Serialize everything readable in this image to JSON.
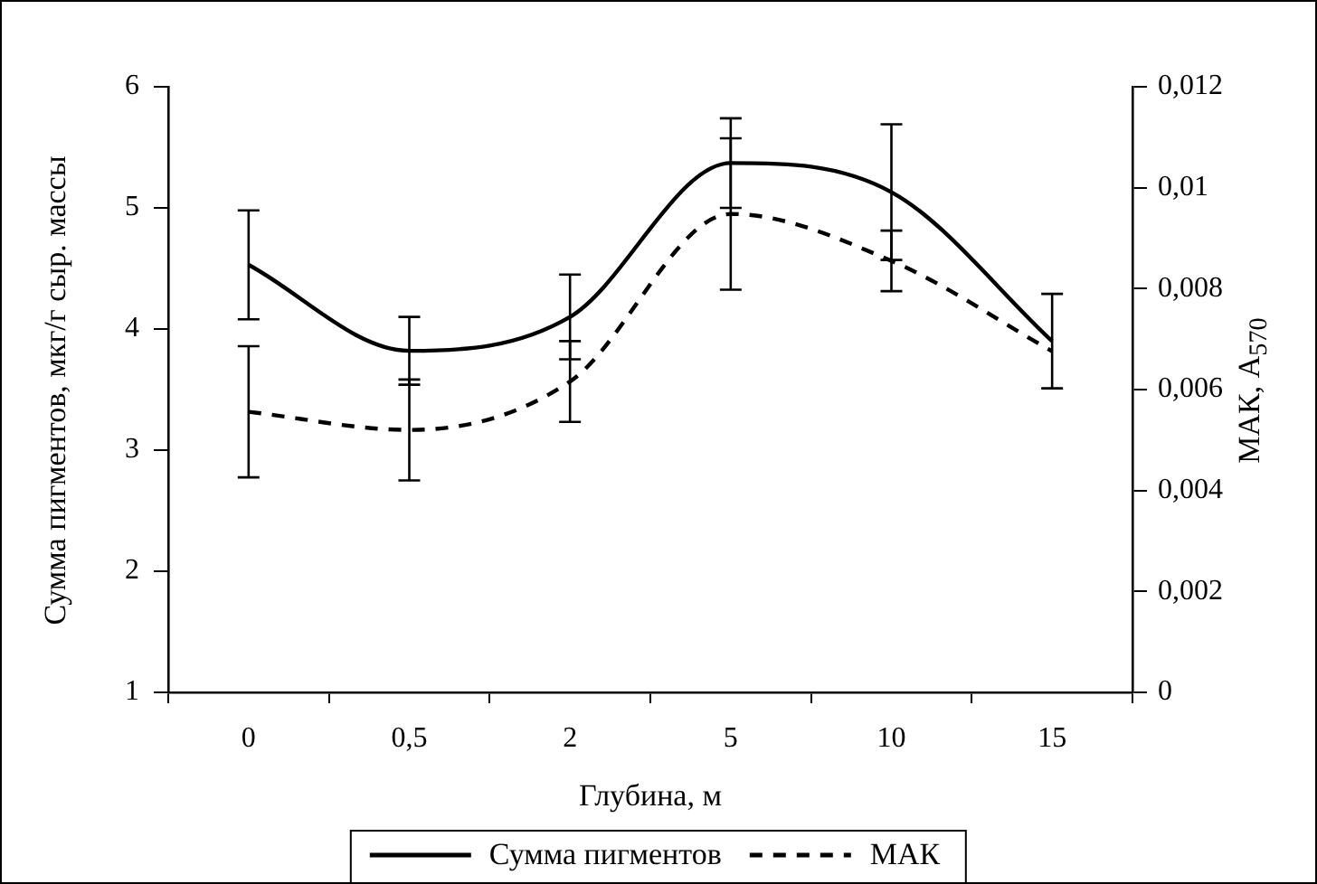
{
  "chart_data": {
    "type": "line",
    "xlabel": "Глубина, м",
    "ylabel": "Сумма пигментов,  мкг/г сыр.  массы",
    "y2label": "МАК,  A$_{570}$",
    "categories": [
      "0",
      "0,5",
      "2",
      "5",
      "10",
      "15"
    ],
    "series": [
      {
        "name": "Сумма пигментов",
        "color": "#000000",
        "line_style": "solid",
        "values": [
          4.53,
          3.82,
          4.1,
          5.37,
          5.13,
          3.9
        ],
        "errors": [
          0.45,
          0.28,
          0.35,
          0.37,
          0.56,
          0.39
        ]
      },
      {
        "name": "МАК",
        "color": "#000000",
        "line_style": "dashed",
        "axis": "y2",
        "values": [
          0.00556,
          0.0052,
          0.00616,
          0.00948,
          0.00855,
          0.00676
        ],
        "errors": [
          0.0013,
          0.001,
          0.0008,
          0.0015,
          0.0006,
          null
        ]
      }
    ],
    "ylim": [
      1,
      6
    ],
    "yticks": [
      1,
      2,
      3,
      4,
      5,
      6
    ],
    "y2lim": [
      0,
      0.012
    ],
    "y2ticks": [
      0,
      {
        "value": 0.002,
        "label": "0,002"
      },
      {
        "value": 0.004,
        "label": "0,004"
      },
      {
        "value": 0.006,
        "label": "0,006"
      },
      {
        "value": 0.008,
        "label": "0,008"
      },
      {
        "value": 0.01,
        "label": "0,01"
      },
      {
        "value": 0.012,
        "label": "0,012"
      }
    ],
    "grid": false,
    "legend": "bottom",
    "marker": "none"
  }
}
